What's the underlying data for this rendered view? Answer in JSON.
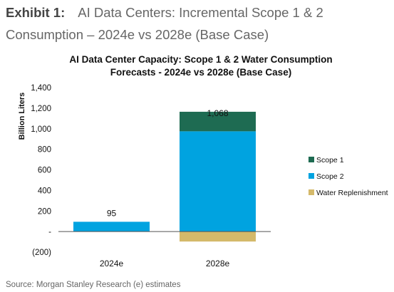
{
  "exhibit": {
    "label": "Exhibit 1:",
    "title": "AI Data Centers: Incremental Scope 1 & 2 Consumption – 2024e vs 2028e (Base Case)"
  },
  "source": "Source: Morgan Stanley Research (e) estimates",
  "chart_data": {
    "type": "bar",
    "stacked": true,
    "title": "AI Data Center Capacity:  Scope 1 & 2 Water Consumption",
    "subtitle": "Forecasts - 2024e vs 2028e  (Base Case)",
    "xlabel": "",
    "ylabel": "Billion Liters",
    "ylim": [
      -200,
      1400
    ],
    "yticks": [
      -200,
      0,
      200,
      400,
      600,
      800,
      1000,
      1200,
      1400
    ],
    "ytick_labels": [
      "(200)",
      "-",
      "200",
      "400",
      "600",
      "800",
      "1,000",
      "1,200",
      "1,400"
    ],
    "categories": [
      "2024e",
      "2028e"
    ],
    "series": [
      {
        "name": "Scope 1",
        "color": "#1e6b52",
        "values": [
          0,
          190
        ]
      },
      {
        "name": "Scope 2",
        "color": "#00a3e0",
        "values": [
          95,
          975
        ]
      },
      {
        "name": "Water Replenishment",
        "color": "#d4b96a",
        "values": [
          0,
          -97
        ]
      }
    ],
    "totals": [
      95,
      1068
    ],
    "total_labels": [
      "95",
      "1,068"
    ],
    "grid": false,
    "legend_position": "right"
  }
}
